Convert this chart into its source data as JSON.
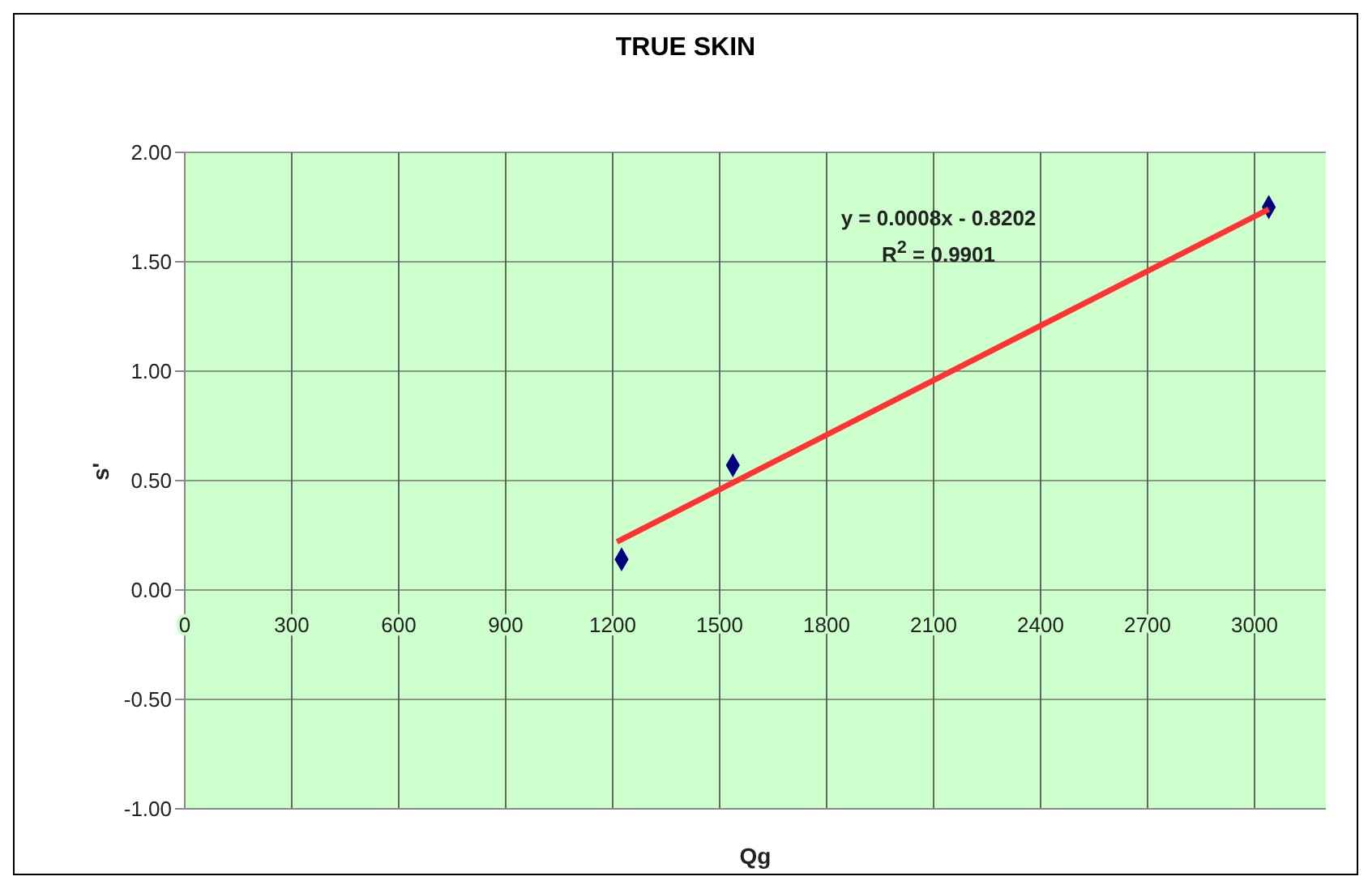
{
  "chart_data": {
    "type": "scatter",
    "title": "TRUE SKIN",
    "xlabel": "Qg",
    "ylabel": "s'",
    "xlim": [
      0,
      3200
    ],
    "xticks": [
      0,
      300,
      600,
      900,
      1200,
      1500,
      1800,
      2100,
      2400,
      2700,
      3000
    ],
    "ylim": [
      -1,
      2
    ],
    "yticks": [
      {
        "value": -1,
        "label": "-1.00"
      },
      {
        "value": -0.5,
        "label": "-0.50"
      },
      {
        "value": 0,
        "label": "0.00"
      },
      {
        "value": 0.5,
        "label": "0.50"
      },
      {
        "value": 1,
        "label": "1.00"
      },
      {
        "value": 1.5,
        "label": "1.50"
      },
      {
        "value": 2,
        "label": "2.00"
      }
    ],
    "grid": true,
    "series": [
      {
        "marker": "diamond",
        "color": "#000080",
        "x": [
          1225,
          1537,
          3040
        ],
        "values": [
          0.14,
          0.57,
          1.75
        ]
      },
      {
        "type": "line",
        "marker": "none",
        "color": "#ff3333",
        "x": [
          1212,
          3040
        ],
        "values": [
          0.22,
          1.74
        ]
      }
    ],
    "annotations": [
      "y = 0.0008x - 0.8202",
      "R$^{2}$ = 0.9901"
    ]
  }
}
